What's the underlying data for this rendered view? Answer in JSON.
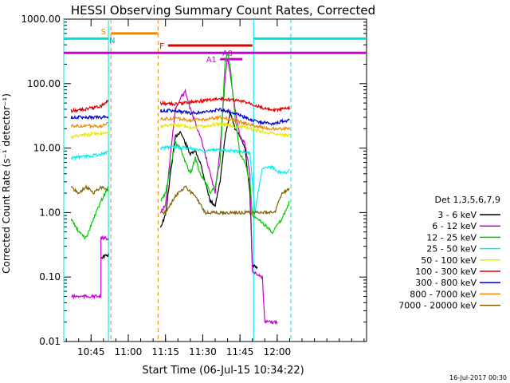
{
  "chart_data": {
    "type": "line",
    "title": "HESSI Observing Summary Count Rates, Corrected",
    "xlabel": "Start Time (06-Jul-15 10:34:22)",
    "ylabel": "Corrected Count Rate (s⁻¹ detector⁻¹)",
    "yscale": "log",
    "ylim": [
      0.01,
      1000
    ],
    "xlim_minutes": [
      0,
      122
    ],
    "ytick_labels": [
      "1000.00",
      "100.00",
      "10.00",
      "1.00",
      "0.10",
      "0.01"
    ],
    "ytick_values": [
      1000,
      100,
      10,
      1,
      0.1,
      0.01
    ],
    "xtick_labels": [
      "10:45",
      "11:00",
      "11:15",
      "11:30",
      "11:45",
      "12:00"
    ],
    "xtick_minutes": [
      11,
      26,
      41,
      56,
      71,
      86
    ],
    "legend_title": "Det 1,3,5,6,7,9",
    "legend_position": "right",
    "series": [
      {
        "name": "3 - 6 keV",
        "color": "#000000",
        "seg": [
          [
            [
              15,
              0.2
            ],
            [
              18,
              0.22
            ]
          ],
          [
            [
              39,
              0.6
            ],
            [
              41,
              0.9
            ],
            [
              43,
              4
            ],
            [
              45,
              15
            ],
            [
              47,
              18
            ],
            [
              49,
              12
            ],
            [
              51,
              8
            ],
            [
              53,
              9
            ],
            [
              55,
              6
            ],
            [
              57,
              3
            ],
            [
              59,
              1.5
            ],
            [
              61,
              1.3
            ],
            [
              63,
              3
            ],
            [
              65,
              15
            ],
            [
              67,
              35
            ],
            [
              69,
              20
            ],
            [
              71,
              15
            ],
            [
              73,
              10
            ],
            [
              75,
              2
            ],
            [
              76,
              0.15
            ],
            [
              78,
              0.14
            ]
          ]
        ]
      },
      {
        "name": "6 - 12 keV",
        "color": "#cc00cc",
        "seg": [
          [
            [
              3,
              0.05
            ],
            [
              15,
              0.05
            ],
            [
              15,
              0.4
            ],
            [
              18,
              0.4
            ]
          ],
          [
            [
              39,
              1.0
            ],
            [
              41,
              1.3
            ],
            [
              43,
              8
            ],
            [
              45,
              40
            ],
            [
              47,
              60
            ],
            [
              49,
              75
            ],
            [
              51,
              40
            ],
            [
              53,
              25
            ],
            [
              55,
              15
            ],
            [
              57,
              8
            ],
            [
              59,
              4
            ],
            [
              61,
              2
            ],
            [
              63,
              10
            ],
            [
              65,
              120
            ],
            [
              66,
              250
            ],
            [
              67,
              150
            ],
            [
              69,
              40
            ],
            [
              71,
              15
            ],
            [
              73,
              12
            ],
            [
              75,
              4
            ],
            [
              76,
              0.12
            ],
            [
              78,
              0.11
            ],
            [
              80,
              0.1
            ],
            [
              81,
              0.02
            ],
            [
              86,
              0.02
            ]
          ]
        ]
      },
      {
        "name": "12 - 25 keV",
        "color": "#00cc00",
        "seg": [
          [
            [
              3,
              0.8
            ],
            [
              6,
              0.5
            ],
            [
              9,
              0.4
            ],
            [
              12,
              0.8
            ],
            [
              15,
              1.5
            ],
            [
              18,
              2.5
            ]
          ],
          [
            [
              39,
              1.5
            ],
            [
              41,
              2
            ],
            [
              43,
              5
            ],
            [
              45,
              12
            ],
            [
              47,
              10
            ],
            [
              49,
              6
            ],
            [
              51,
              4
            ],
            [
              53,
              7
            ],
            [
              55,
              4
            ],
            [
              57,
              3
            ],
            [
              59,
              2
            ],
            [
              61,
              2.5
            ],
            [
              63,
              6
            ],
            [
              65,
              220
            ],
            [
              66,
              300
            ],
            [
              67,
              200
            ],
            [
              69,
              30
            ],
            [
              71,
              8
            ],
            [
              73,
              6
            ],
            [
              75,
              3
            ],
            [
              76,
              0.9
            ],
            [
              80,
              0.7
            ],
            [
              84,
              0.5
            ],
            [
              88,
              0.8
            ],
            [
              91,
              1.5
            ]
          ]
        ]
      },
      {
        "name": "25 - 50 keV",
        "color": "#00eeee",
        "seg": [
          [
            [
              3,
              7
            ],
            [
              9,
              7.5
            ],
            [
              15,
              8
            ],
            [
              18,
              9
            ]
          ],
          [
            [
              39,
              10
            ],
            [
              45,
              10.5
            ],
            [
              51,
              10
            ],
            [
              57,
              9
            ],
            [
              63,
              9.5
            ],
            [
              69,
              9
            ],
            [
              75,
              8.5
            ],
            [
              77,
              1
            ],
            [
              80,
              5
            ],
            [
              84,
              5
            ],
            [
              88,
              4
            ],
            [
              91,
              4.5
            ]
          ]
        ]
      },
      {
        "name": "50 - 100 keV",
        "color": "#e8e800",
        "seg": [
          [
            [
              3,
              15
            ],
            [
              9,
              16
            ],
            [
              15,
              17
            ],
            [
              18,
              18
            ]
          ],
          [
            [
              39,
              22
            ],
            [
              45,
              23
            ],
            [
              51,
              21
            ],
            [
              57,
              22
            ],
            [
              63,
              24
            ],
            [
              69,
              22
            ],
            [
              75,
              20
            ],
            [
              80,
              18
            ],
            [
              84,
              17
            ],
            [
              88,
              16
            ],
            [
              91,
              16
            ]
          ]
        ]
      },
      {
        "name": "100 - 300 keV",
        "color": "#dd0000",
        "seg": [
          [
            [
              3,
              38
            ],
            [
              9,
              40
            ],
            [
              15,
              45
            ],
            [
              18,
              55
            ]
          ],
          [
            [
              39,
              50
            ],
            [
              45,
              48
            ],
            [
              51,
              52
            ],
            [
              57,
              55
            ],
            [
              63,
              58
            ],
            [
              69,
              55
            ],
            [
              75,
              50
            ],
            [
              80,
              42
            ],
            [
              84,
              38
            ],
            [
              88,
              40
            ],
            [
              91,
              42
            ]
          ]
        ]
      },
      {
        "name": "300 - 800 keV",
        "color": "#0000cc",
        "seg": [
          [
            [
              3,
              30
            ],
            [
              9,
              30
            ],
            [
              15,
              30
            ],
            [
              18,
              31
            ]
          ],
          [
            [
              39,
              38
            ],
            [
              45,
              38
            ],
            [
              51,
              35
            ],
            [
              57,
              36
            ],
            [
              63,
              40
            ],
            [
              69,
              35
            ],
            [
              75,
              28
            ],
            [
              80,
              25
            ],
            [
              84,
              24
            ],
            [
              88,
              26
            ],
            [
              91,
              27
            ]
          ]
        ]
      },
      {
        "name": "800 - 7000 keV",
        "color": "#ee8800",
        "seg": [
          [
            [
              3,
              22
            ],
            [
              9,
              22
            ],
            [
              15,
              22
            ],
            [
              18,
              24
            ]
          ],
          [
            [
              39,
              28
            ],
            [
              45,
              29
            ],
            [
              51,
              27
            ],
            [
              57,
              28
            ],
            [
              63,
              30
            ],
            [
              69,
              27
            ],
            [
              75,
              23
            ],
            [
              80,
              21
            ],
            [
              84,
              20
            ],
            [
              88,
              20
            ],
            [
              91,
              20
            ]
          ]
        ]
      },
      {
        "name": "7000 - 20000 keV",
        "color": "#806000",
        "seg": [
          [
            [
              3,
              2.5
            ],
            [
              6,
              2.0
            ],
            [
              9,
              2.5
            ],
            [
              12,
              2.0
            ],
            [
              15,
              2.5
            ],
            [
              18,
              2.2
            ]
          ],
          [
            [
              39,
              1.0
            ],
            [
              41,
              1.0
            ],
            [
              45,
              1.8
            ],
            [
              49,
              2.5
            ],
            [
              53,
              1.8
            ],
            [
              57,
              1.0
            ],
            [
              63,
              1.0
            ],
            [
              69,
              1.0
            ],
            [
              73,
              1.0
            ],
            [
              76,
              1.0
            ],
            [
              80,
              1.0
            ],
            [
              85,
              1.0
            ],
            [
              88,
              2.0
            ],
            [
              91,
              2.3
            ]
          ]
        ]
      }
    ],
    "boundaries": [
      {
        "minute": 0,
        "color": "#00dddd",
        "style": "solid"
      },
      {
        "minute": 18,
        "color": "#00dddd",
        "style": "solid"
      },
      {
        "minute": 19,
        "color": "#ee8800",
        "style": "dashed"
      },
      {
        "minute": 38,
        "color": "#ee8800",
        "style": "dashed"
      },
      {
        "minute": 76.5,
        "color": "#00dddd",
        "style": "solid"
      },
      {
        "minute": 91.5,
        "color": "#00dddd",
        "style": "dashed"
      }
    ],
    "flag_bars": [
      {
        "label": "S",
        "color": "#ee8800",
        "x1": 19,
        "x2": 38,
        "y": 600
      },
      {
        "label": "N",
        "color": "#00dddd",
        "x1": 0,
        "x2": 18,
        "y": 500
      },
      {
        "label": "N",
        "color": "#00dddd",
        "x1": 76.5,
        "x2": 122,
        "y": 500
      },
      {
        "label": "F",
        "color": "#dd0000",
        "x1": 42,
        "x2": 76,
        "y": 390
      },
      {
        "label": "A0",
        "color": "#cc00cc",
        "x1": 0,
        "x2": 122,
        "y": 300
      },
      {
        "label": "A1",
        "color": "#cc00cc",
        "x1": 63,
        "x2": 72,
        "y": 240
      }
    ],
    "flag_labels": [
      {
        "text": "S",
        "color": "#ee8800",
        "minute": 16,
        "value": 650
      },
      {
        "text": "N",
        "color": "#00aaaa",
        "minute": 19.5,
        "value": 480
      },
      {
        "text": "F",
        "color": "#dd0000",
        "minute": 39.5,
        "value": 390
      },
      {
        "text": "A0",
        "color": "#cc00cc",
        "minute": 66,
        "value": 300
      },
      {
        "text": "A1",
        "color": "#cc00cc",
        "minute": 59.5,
        "value": 240
      }
    ]
  },
  "footer_timestamp": "16-Jul-2017 00:30"
}
